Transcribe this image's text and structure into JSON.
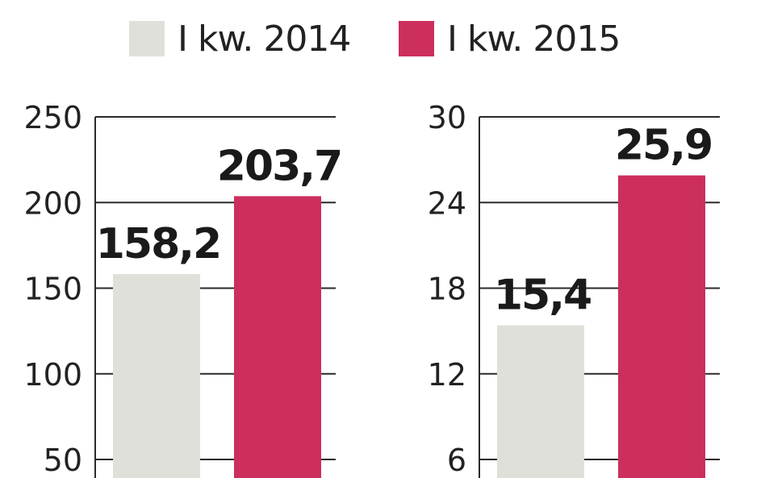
{
  "legend": [
    {
      "label": "I kw. 2014",
      "color": "#e0e0da"
    },
    {
      "label": "I kw. 2015",
      "color": "#cc2f5c"
    }
  ],
  "chart_data": [
    {
      "type": "bar",
      "categories": [
        "I kw. 2014",
        "I kw. 2015"
      ],
      "values": [
        158.2,
        203.7
      ],
      "value_labels": [
        "158,2",
        "203,7"
      ],
      "yticks": [
        50,
        100,
        150,
        200,
        250
      ],
      "ytick_labels": [
        "50",
        "100",
        "150",
        "200",
        "250"
      ],
      "ylim": [
        40,
        250
      ],
      "grid": true,
      "colors": [
        "#e0e0da",
        "#cc2f5c"
      ]
    },
    {
      "type": "bar",
      "categories": [
        "I kw. 2014",
        "I kw. 2015"
      ],
      "values": [
        15.4,
        25.9
      ],
      "value_labels": [
        "15,4",
        "25,9"
      ],
      "yticks": [
        6,
        12,
        18,
        24,
        30
      ],
      "ytick_labels": [
        "6",
        "12",
        "18",
        "24",
        "30"
      ],
      "ylim": [
        4.8,
        30
      ],
      "grid": true,
      "colors": [
        "#e0e0da",
        "#cc2f5c"
      ]
    }
  ]
}
